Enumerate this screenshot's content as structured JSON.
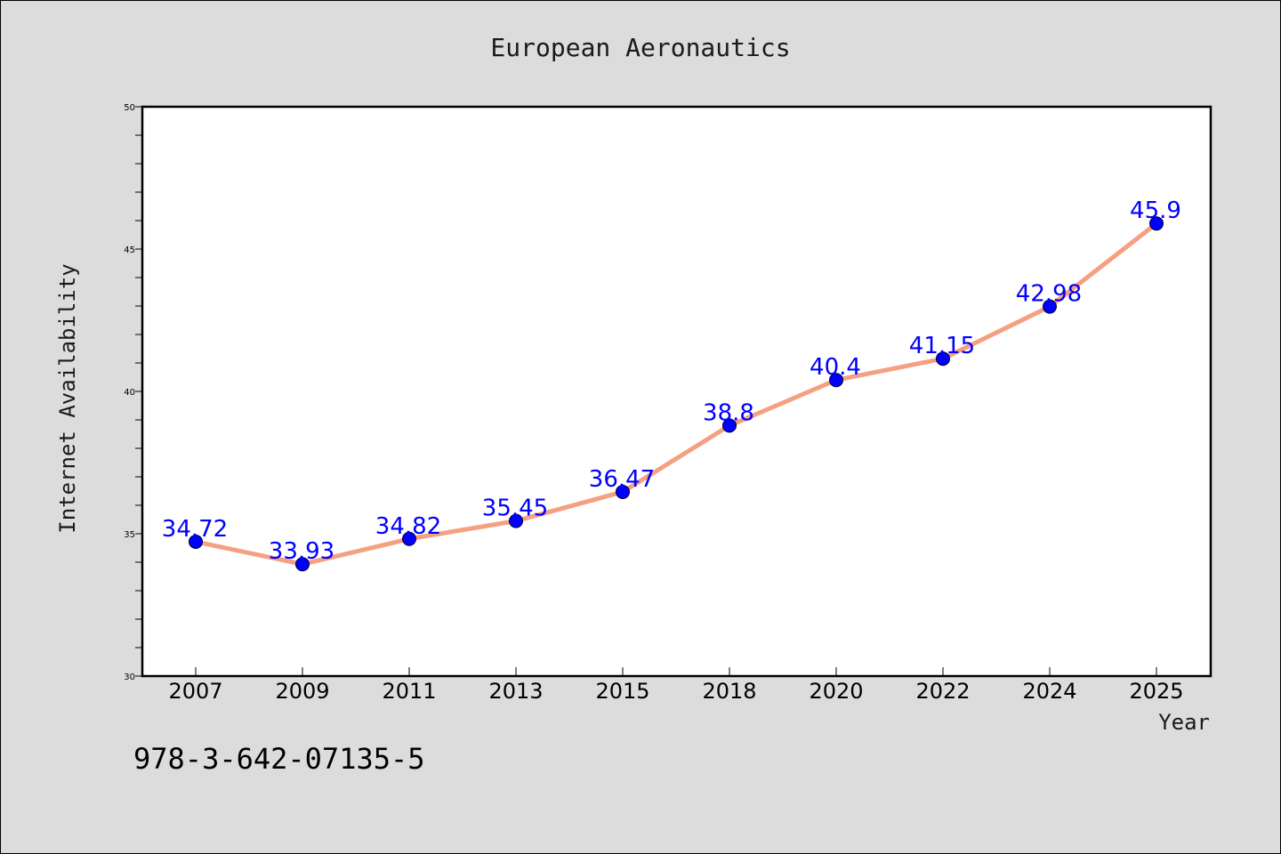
{
  "footer_text": "978-3-642-07135-5",
  "chart_data": {
    "type": "line",
    "title": "European Aeronautics",
    "xlabel": "Year",
    "ylabel": "Internet Availability",
    "categories": [
      "2007",
      "2009",
      "2011",
      "2013",
      "2015",
      "2018",
      "2020",
      "2022",
      "2024",
      "2025"
    ],
    "values": [
      34.72,
      33.93,
      34.82,
      35.45,
      36.47,
      38.8,
      40.4,
      41.15,
      42.98,
      45.9
    ],
    "data_labels": [
      "34.72",
      "33.93",
      "34.82",
      "35.45",
      "36.47",
      "38.8",
      "40.4",
      "41.15",
      "42.98",
      "45.9"
    ],
    "ylim": [
      30,
      50
    ],
    "yticks": [
      30,
      35,
      40,
      45,
      50
    ],
    "grid": false,
    "colors": {
      "line": "#f4a081",
      "marker": "#0000ff",
      "labels": "#0000ff"
    }
  }
}
